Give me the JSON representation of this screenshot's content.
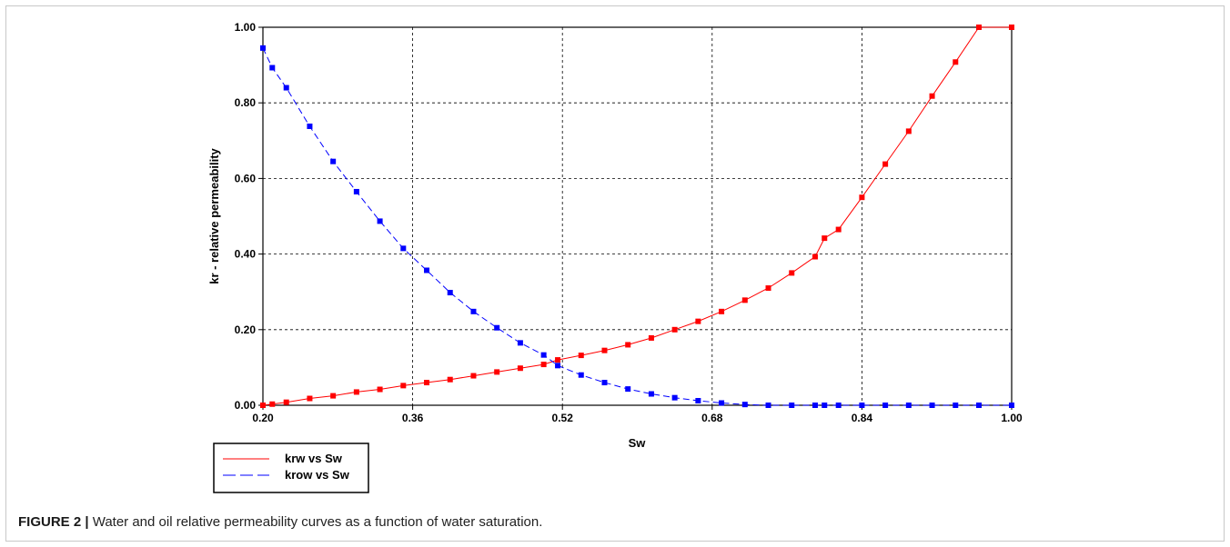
{
  "caption": {
    "label": "FIGURE 2 |",
    "text": " Water and oil relative permeability curves as a function of water saturation."
  },
  "chart_data": {
    "type": "line",
    "xlabel": "Sw",
    "ylabel": "kr - relative permeability",
    "xlim": [
      0.2,
      1.0
    ],
    "ylim": [
      0.0,
      1.0
    ],
    "x_ticks": [
      "0.20",
      "0.36",
      "0.52",
      "0.68",
      "0.84",
      "1.00"
    ],
    "y_ticks": [
      "0.00",
      "0.20",
      "0.40",
      "0.60",
      "0.80",
      "1.00"
    ],
    "grid": true,
    "legend_position": "bottom-left",
    "colors": {
      "krw": "#ff0000",
      "krow": "#0000ff"
    },
    "series": [
      {
        "name": "krw vs Sw",
        "style": "solid",
        "x": [
          0.2,
          0.21,
          0.225,
          0.25,
          0.275,
          0.3,
          0.325,
          0.35,
          0.375,
          0.4,
          0.425,
          0.45,
          0.475,
          0.5,
          0.515,
          0.54,
          0.565,
          0.59,
          0.615,
          0.64,
          0.665,
          0.69,
          0.715,
          0.74,
          0.765,
          0.79,
          0.8,
          0.815,
          0.84,
          0.865,
          0.89,
          0.915,
          0.94,
          0.965,
          1.0
        ],
        "y": [
          0.0,
          0.003,
          0.008,
          0.018,
          0.025,
          0.035,
          0.042,
          0.052,
          0.06,
          0.068,
          0.078,
          0.088,
          0.098,
          0.108,
          0.12,
          0.132,
          0.145,
          0.16,
          0.178,
          0.2,
          0.222,
          0.248,
          0.278,
          0.31,
          0.35,
          0.393,
          0.442,
          0.465,
          0.55,
          0.638,
          0.725,
          0.818,
          0.908,
          1.0,
          1.0
        ]
      },
      {
        "name": "krow vs Sw",
        "style": "dashed",
        "x": [
          0.2,
          0.21,
          0.225,
          0.25,
          0.275,
          0.3,
          0.325,
          0.35,
          0.375,
          0.4,
          0.425,
          0.45,
          0.475,
          0.5,
          0.515,
          0.54,
          0.565,
          0.59,
          0.615,
          0.64,
          0.665,
          0.69,
          0.715,
          0.74,
          0.765,
          0.79,
          0.8,
          0.815,
          0.84,
          0.865,
          0.89,
          0.915,
          0.94,
          0.965,
          1.0
        ],
        "y": [
          0.945,
          0.893,
          0.84,
          0.738,
          0.645,
          0.565,
          0.487,
          0.415,
          0.357,
          0.298,
          0.248,
          0.205,
          0.165,
          0.133,
          0.105,
          0.08,
          0.06,
          0.043,
          0.03,
          0.02,
          0.012,
          0.006,
          0.002,
          0.0,
          0.0,
          0.0,
          0.0,
          0.0,
          0.0,
          0.0,
          0.0,
          0.0,
          0.0,
          0.0,
          0.0
        ]
      }
    ]
  }
}
